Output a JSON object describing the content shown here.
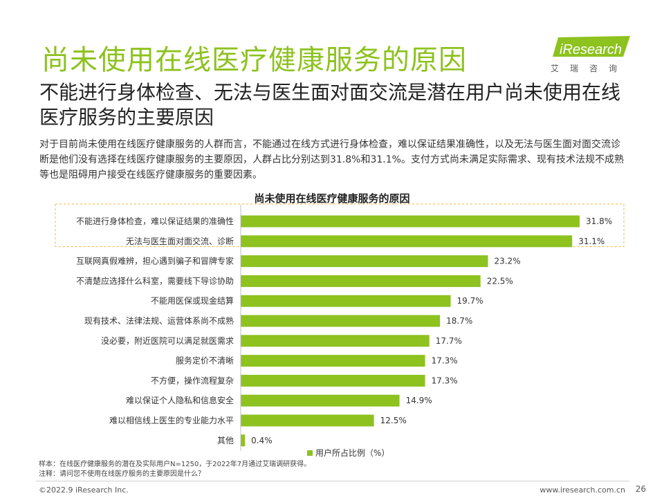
{
  "header": {
    "title": "尚未使用在线医疗健康服务的原因",
    "subtitle": "不能进行身体检查、无法与医生面对面交流是潜在用户尚未使用在线医疗服务的主要原因",
    "description": "对于目前尚未使用在线医疗健康服务的人群而言，不能通过在线方式进行身体检查，难以保证结果准确性，以及无法与医生面对面交流诊断是他们没有选择在线医疗健康服务的主要原因，人群占比分别达到31.8%和31.1%。支付方式尚未满足实际需求、现有技术法规不成熟等也是阻碍用户接受在线医疗健康服务的重要因素。"
  },
  "logo": {
    "text": "iResearch",
    "cn": "艾瑞咨询"
  },
  "chart_data": {
    "type": "bar",
    "orientation": "horizontal",
    "title": "尚未使用在线医疗健康服务的原因",
    "categories": [
      "不能进行身体检查，难以保证结果的准确性",
      "无法与医生面对面交流、诊断",
      "互联网真假难辨，担心遇到骗子和冒牌专家",
      "不清楚应选择什么科室，需要线下导诊协助",
      "不能用医保或现金结算",
      "现有技术、法律法规、运营体系尚不成熟",
      "没必要，附近医院可以满足就医需求",
      "服务定价不清晰",
      "不方便，操作流程复杂",
      "难以保证个人隐私和信息安全",
      "难以相信线上医生的专业能力水平",
      "其他"
    ],
    "series": [
      {
        "name": "用户所占比例（%）",
        "values": [
          31.8,
          31.1,
          23.2,
          22.5,
          19.7,
          18.7,
          17.7,
          17.3,
          17.3,
          14.9,
          12.5,
          0.4
        ],
        "labels": [
          "31.8%",
          "31.1%",
          "23.2%",
          "22.5%",
          "19.7%",
          "18.7%",
          "17.7%",
          "17.3%",
          "17.3%",
          "14.9%",
          "12.5%",
          "0.4%"
        ]
      }
    ],
    "highlighted_categories": [
      0,
      1
    ],
    "bar_color": "#8dc21f",
    "highlight_border_color": "#f5b335",
    "legend_position": "bottom"
  },
  "notes": {
    "sample": "样本：在线医疗健康服务的潜在及实际用户N=1250，于2022年7月通过艾瑞调研获得。",
    "note": "注释：请问您不使用在线医疗服务的主要原因是什么？"
  },
  "footer": {
    "copyright": "©2022.9 iResearch Inc.",
    "website": "www.iresearch.com.cn",
    "page": "26"
  },
  "colors": {
    "accent": "#8dc21f",
    "highlight": "#f5b335"
  }
}
